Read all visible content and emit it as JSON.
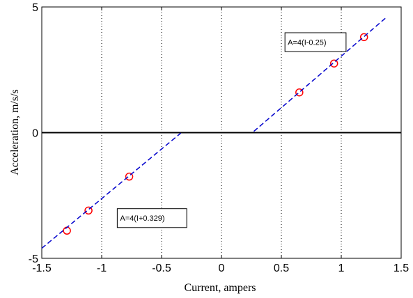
{
  "chart_data": {
    "type": "scatter",
    "title": "",
    "xlabel": "Current, ampers",
    "ylabel": "Acceleration, m/s/s",
    "xlim": [
      -1.5,
      1.5
    ],
    "ylim": [
      -5,
      5
    ],
    "xticks": [
      -1.5,
      -1,
      -0.5,
      0,
      0.5,
      1,
      1.5
    ],
    "xtick_labels": [
      "-1.5",
      "-1",
      "-0.5",
      "0",
      "0.5",
      "1",
      "1.5"
    ],
    "yticks": [
      -5,
      0,
      5
    ],
    "ytick_labels": [
      "-5",
      "0",
      "5"
    ],
    "grid": "x-dotted",
    "zero_line": true,
    "series": [
      {
        "marker": "circle",
        "color": "#ff0000",
        "x": [
          -1.29,
          -1.11,
          -0.77,
          0.65,
          0.94,
          1.19
        ],
        "y": [
          -3.9,
          -3.1,
          -1.75,
          1.6,
          2.75,
          3.8
        ]
      },
      {
        "style": "dashed",
        "color": "#0000cc",
        "x": [
          -1.5,
          -0.34
        ],
        "y": [
          -4.6,
          -0.02
        ]
      },
      {
        "style": "dashed",
        "color": "#0000cc",
        "x": [
          0.27,
          1.38
        ],
        "y": [
          0.05,
          4.6
        ]
      }
    ],
    "annotations": [
      {
        "text": "A=4(I-0.25)",
        "x": 0.53,
        "y": 3.6,
        "w": 0.51,
        "h": 0.75
      },
      {
        "text": "A=4(I+0.329)",
        "x": -0.87,
        "y": -3.4,
        "w": 0.58,
        "h": 0.75
      }
    ]
  }
}
